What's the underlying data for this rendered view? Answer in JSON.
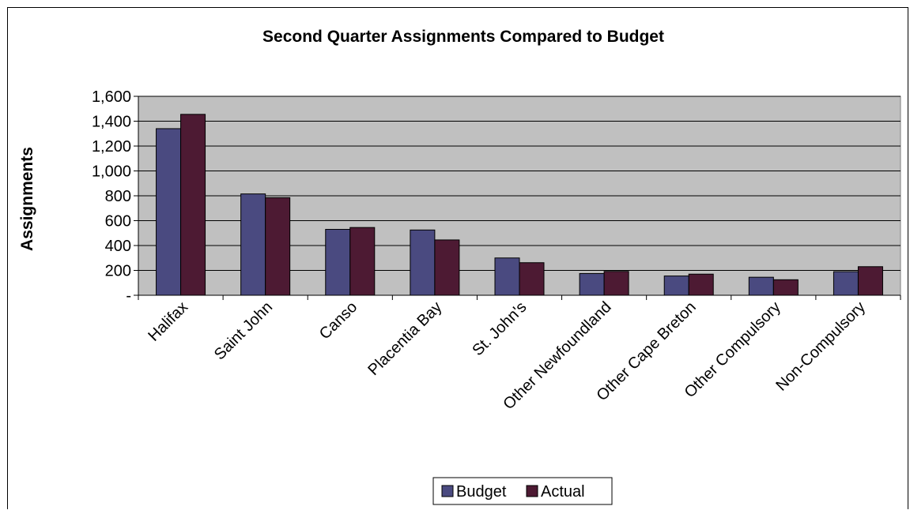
{
  "chart_data": {
    "type": "bar",
    "title": "Second Quarter Assignments Compared to Budget",
    "ylabel": "Assignments",
    "xlabel": "",
    "categories": [
      "Halifax",
      "Saint John",
      "Canso",
      "Placentia Bay",
      "St. John's",
      "Other Newfoundland",
      "Other Cape Breton",
      "Other Compulsory",
      "Non-Compulsory"
    ],
    "series": [
      {
        "name": "Budget",
        "color": "#4a4a80",
        "values": [
          1340,
          815,
          530,
          525,
          300,
          175,
          155,
          145,
          190
        ]
      },
      {
        "name": "Actual",
        "color": "#4d1a33",
        "values": [
          1455,
          785,
          545,
          445,
          262,
          192,
          170,
          125,
          230
        ]
      }
    ],
    "ylim": [
      0,
      1600
    ],
    "yticks": [
      0,
      200,
      400,
      600,
      800,
      1000,
      1200,
      1400,
      1600
    ],
    "ytick_labels": [
      "-",
      "200",
      "400",
      "600",
      "800",
      "1,000",
      "1,200",
      "1,400",
      "1,600"
    ],
    "plot_background": "#c0c0c0",
    "grid": true,
    "legend_position": "bottom"
  }
}
